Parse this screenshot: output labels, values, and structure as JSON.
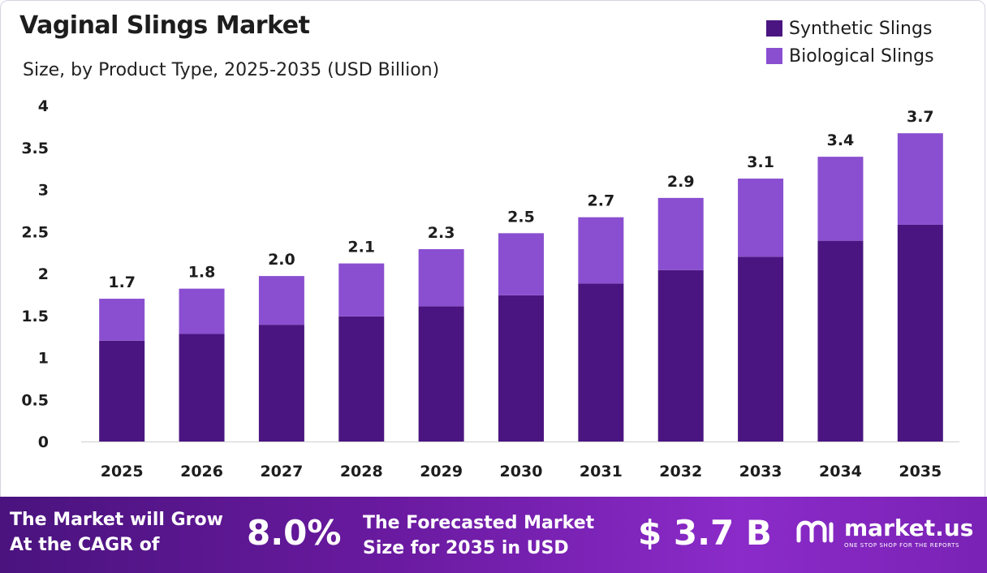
{
  "chart_data": {
    "type": "bar",
    "stacked": true,
    "title": "Vaginal Slings Market",
    "subtitle": "Size, by Product Type, 2025-2035 (USD Billion)",
    "categories": [
      "2025",
      "2026",
      "2027",
      "2028",
      "2029",
      "2030",
      "2031",
      "2032",
      "2033",
      "2034",
      "2035"
    ],
    "series": [
      {
        "name": "Synthetic Slings",
        "color": "#4b1581",
        "values": [
          1.2,
          1.28,
          1.39,
          1.49,
          1.61,
          1.74,
          1.88,
          2.04,
          2.2,
          2.39,
          2.58
        ]
      },
      {
        "name": "Biological Slings",
        "color": "#8a4fd0",
        "values": [
          0.5,
          0.54,
          0.58,
          0.63,
          0.68,
          0.74,
          0.79,
          0.86,
          0.93,
          1.0,
          1.09
        ]
      }
    ],
    "totals": [
      "1.7",
      "1.8",
      "2.0",
      "2.1",
      "2.3",
      "2.5",
      "2.7",
      "2.9",
      "3.1",
      "3.4",
      "3.7"
    ],
    "yticks": [
      "0",
      "0.5",
      "1",
      "1.5",
      "2",
      "2.5",
      "3",
      "3.5",
      "4"
    ],
    "ylim": [
      0,
      4
    ],
    "legend_position": "top-right",
    "grid": false
  },
  "footer": {
    "cagr_text": "The Market will Grow At the CAGR of",
    "cagr_value": "8.0%",
    "forecast_text": "The Forecasted Market Size for 2035 in USD",
    "forecast_value": "$ 3.7 B",
    "brand_name": "market.us",
    "brand_tagline": "ONE STOP SHOP FOR THE REPORTS"
  }
}
